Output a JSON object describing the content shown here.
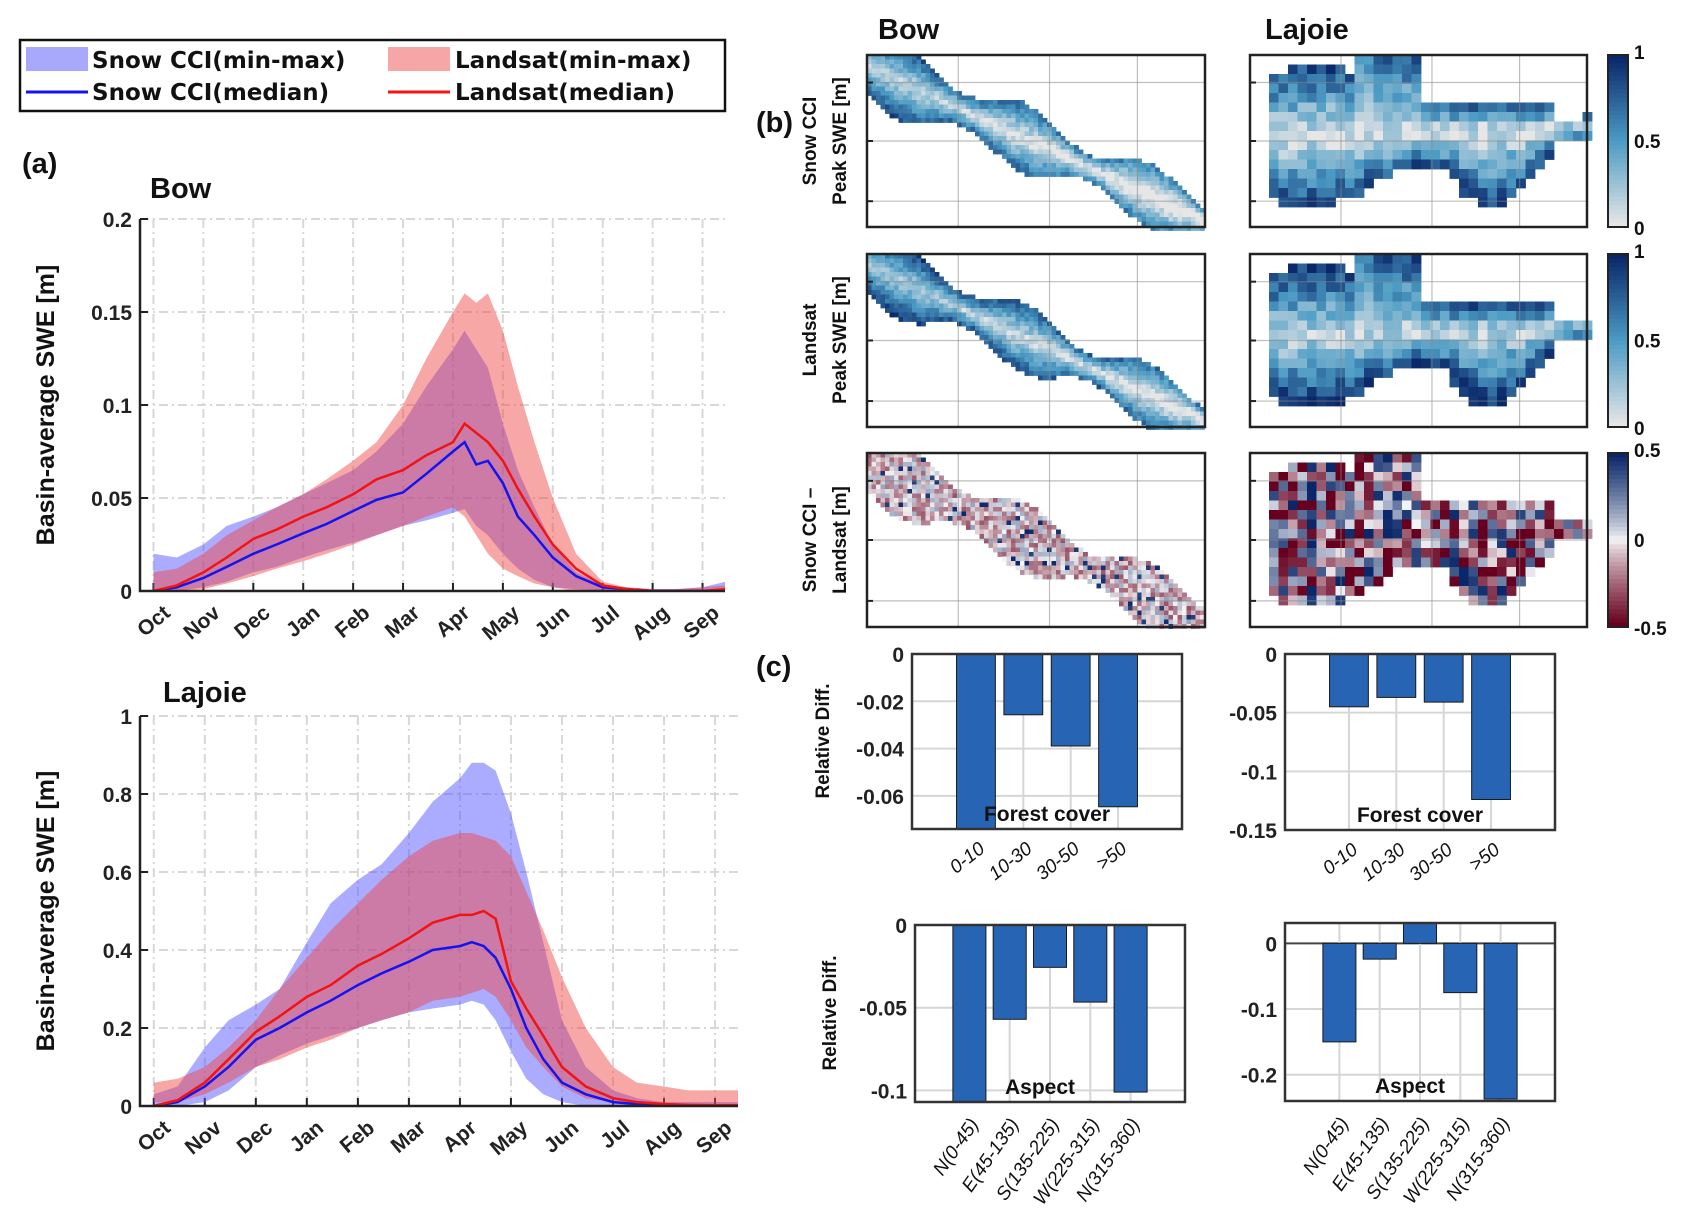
{
  "legend": {
    "items": [
      {
        "label": "Snow CCI(min-max)",
        "kind": "band",
        "color": "#a9a9fb"
      },
      {
        "label": "Landsat(min-max)",
        "kind": "band",
        "color": "#f6a6a6"
      },
      {
        "label": "Snow CCI(median)",
        "kind": "line",
        "color": "#1414f0"
      },
      {
        "label": "Landsat(median)",
        "kind": "line",
        "color": "#f01414"
      }
    ]
  },
  "panel_labels": {
    "a": "(a)",
    "b": "(b)",
    "c": "(c)"
  },
  "chart_data": [
    {
      "id": "bow-timeseries",
      "type": "area",
      "title": "Bow",
      "ylabel": "Basin-average SWE [m]",
      "ylim": [
        0,
        0.2
      ],
      "yticks": [
        "0",
        "0.05",
        "0.1",
        "0.15",
        "0.2"
      ],
      "ytick_values": [
        0,
        0.05,
        0.1,
        0.15,
        0.2
      ],
      "xticks": [
        "Oct",
        "Nov",
        "Dec",
        "Jan",
        "Feb",
        "Mar",
        "Apr",
        "May",
        "Jun",
        "Jul",
        "Aug",
        "Sep"
      ],
      "grid": true,
      "x": [
        "10-01",
        "10-15",
        "11-01",
        "11-15",
        "12-01",
        "12-15",
        "01-01",
        "01-15",
        "02-01",
        "02-15",
        "03-01",
        "03-15",
        "04-01",
        "04-08",
        "04-15",
        "04-22",
        "05-01",
        "05-10",
        "05-20",
        "06-01",
        "06-15",
        "07-01",
        "07-15",
        "08-01",
        "08-15",
        "09-01",
        "09-15",
        "09-30"
      ],
      "series": [
        {
          "name": "Snow CCI(min-max)",
          "kind": "band",
          "color": "#5050ff",
          "min": [
            0,
            0,
            0.002,
            0.005,
            0.01,
            0.013,
            0.018,
            0.022,
            0.026,
            0.03,
            0.035,
            0.038,
            0.042,
            0.044,
            0.035,
            0.03,
            0.02,
            0.012,
            0.006,
            0.002,
            0.001,
            0,
            0,
            0,
            0,
            0,
            0,
            0
          ],
          "max": [
            0.02,
            0.018,
            0.025,
            0.035,
            0.04,
            0.045,
            0.052,
            0.058,
            0.065,
            0.075,
            0.09,
            0.11,
            0.13,
            0.14,
            0.13,
            0.12,
            0.09,
            0.065,
            0.045,
            0.025,
            0.01,
            0.003,
            0.002,
            0.001,
            0.001,
            0.002,
            0.005,
            0.006
          ]
        },
        {
          "name": "Landsat(min-max)",
          "kind": "band",
          "color": "#f04848",
          "min": [
            0,
            0,
            0.001,
            0.004,
            0.008,
            0.012,
            0.016,
            0.02,
            0.025,
            0.03,
            0.035,
            0.04,
            0.045,
            0.04,
            0.03,
            0.02,
            0.012,
            0.008,
            0.004,
            0.002,
            0,
            0,
            0,
            0,
            0,
            0,
            0,
            0
          ],
          "max": [
            0.01,
            0.012,
            0.02,
            0.03,
            0.038,
            0.045,
            0.052,
            0.06,
            0.07,
            0.08,
            0.1,
            0.125,
            0.15,
            0.16,
            0.155,
            0.16,
            0.14,
            0.11,
            0.08,
            0.05,
            0.02,
            0.005,
            0.002,
            0.001,
            0.001,
            0.002,
            0.003,
            0.003
          ]
        },
        {
          "name": "Snow CCI(median)",
          "kind": "line",
          "color": "#1414f0",
          "values": [
            0,
            0.002,
            0.007,
            0.013,
            0.02,
            0.025,
            0.031,
            0.036,
            0.043,
            0.049,
            0.053,
            0.063,
            0.075,
            0.08,
            0.068,
            0.07,
            0.058,
            0.04,
            0.03,
            0.018,
            0.008,
            0.002,
            0.001,
            0,
            0,
            0,
            0,
            0
          ]
        },
        {
          "name": "Landsat(median)",
          "kind": "line",
          "color": "#f01414",
          "values": [
            0,
            0.003,
            0.01,
            0.018,
            0.028,
            0.033,
            0.04,
            0.045,
            0.052,
            0.06,
            0.065,
            0.073,
            0.08,
            0.09,
            0.085,
            0.08,
            0.07,
            0.055,
            0.04,
            0.025,
            0.012,
            0.003,
            0.001,
            0,
            0,
            0,
            0.001,
            0.001
          ]
        }
      ]
    },
    {
      "id": "lajoie-timeseries",
      "type": "area",
      "title": "Lajoie",
      "ylabel": "Basin-average SWE [m]",
      "ylim": [
        0,
        1
      ],
      "yticks": [
        "0",
        "0.2",
        "0.4",
        "0.6",
        "0.8",
        "1"
      ],
      "ytick_values": [
        0,
        0.2,
        0.4,
        0.6,
        0.8,
        1
      ],
      "xticks": [
        "Oct",
        "Nov",
        "Dec",
        "Jan",
        "Feb",
        "Mar",
        "Apr",
        "May",
        "Jun",
        "Jul",
        "Aug",
        "Sep"
      ],
      "grid": true,
      "x": [
        "10-01",
        "10-15",
        "11-01",
        "11-15",
        "12-01",
        "12-15",
        "01-01",
        "01-15",
        "02-01",
        "02-15",
        "03-01",
        "03-15",
        "04-01",
        "04-08",
        "04-15",
        "04-22",
        "05-01",
        "05-10",
        "05-20",
        "06-01",
        "06-15",
        "07-01",
        "07-15",
        "08-01",
        "08-15",
        "09-01",
        "09-15",
        "09-30"
      ],
      "series": [
        {
          "name": "Snow CCI(min-max)",
          "kind": "band",
          "color": "#5050ff",
          "min": [
            0,
            0,
            0.01,
            0.04,
            0.1,
            0.13,
            0.16,
            0.18,
            0.2,
            0.22,
            0.24,
            0.25,
            0.26,
            0.27,
            0.26,
            0.22,
            0.14,
            0.07,
            0.03,
            0.01,
            0,
            0,
            0,
            0,
            0,
            0,
            0,
            0
          ],
          "max": [
            0.03,
            0.05,
            0.15,
            0.22,
            0.26,
            0.3,
            0.42,
            0.52,
            0.58,
            0.62,
            0.7,
            0.78,
            0.84,
            0.88,
            0.88,
            0.86,
            0.75,
            0.6,
            0.42,
            0.22,
            0.1,
            0.04,
            0.02,
            0.01,
            0.01,
            0.01,
            0.01,
            0.01
          ]
        },
        {
          "name": "Landsat(min-max)",
          "kind": "band",
          "color": "#f04848",
          "min": [
            0.01,
            0.01,
            0.03,
            0.06,
            0.1,
            0.12,
            0.15,
            0.17,
            0.2,
            0.22,
            0.24,
            0.27,
            0.28,
            0.29,
            0.3,
            0.28,
            0.22,
            0.15,
            0.1,
            0.05,
            0.02,
            0.01,
            0.005,
            0.005,
            0.005,
            0.005,
            0.005,
            0.005
          ],
          "max": [
            0.06,
            0.07,
            0.1,
            0.15,
            0.22,
            0.3,
            0.38,
            0.45,
            0.52,
            0.58,
            0.64,
            0.68,
            0.7,
            0.7,
            0.69,
            0.68,
            0.64,
            0.55,
            0.45,
            0.33,
            0.2,
            0.1,
            0.06,
            0.05,
            0.04,
            0.04,
            0.04,
            0.04
          ]
        },
        {
          "name": "Snow CCI(median)",
          "kind": "line",
          "color": "#1414f0",
          "values": [
            0,
            0.01,
            0.05,
            0.1,
            0.17,
            0.2,
            0.24,
            0.27,
            0.31,
            0.34,
            0.37,
            0.4,
            0.41,
            0.42,
            0.41,
            0.38,
            0.3,
            0.2,
            0.12,
            0.06,
            0.03,
            0.01,
            0.005,
            0,
            0,
            0,
            0,
            0
          ]
        },
        {
          "name": "Landsat(median)",
          "kind": "line",
          "color": "#f01414",
          "values": [
            0,
            0.015,
            0.06,
            0.12,
            0.19,
            0.23,
            0.28,
            0.31,
            0.36,
            0.39,
            0.43,
            0.47,
            0.49,
            0.49,
            0.5,
            0.48,
            0.32,
            0.25,
            0.18,
            0.1,
            0.05,
            0.02,
            0.01,
            0.005,
            0.003,
            0.002,
            0.002,
            0.002
          ]
        }
      ]
    },
    {
      "id": "maps",
      "type": "heatmap",
      "columns": [
        "Bow",
        "Lajoie"
      ],
      "rows": [
        {
          "label_lines": [
            "Snow CCI",
            "Peak SWE [m]"
          ],
          "colorbar": {
            "range": [
              0,
              1
            ],
            "ticks": [
              "0",
              "0.5",
              "1"
            ],
            "colormap": "sequential-blue"
          }
        },
        {
          "label_lines": [
            "Landsat",
            "Peak SWE [m]"
          ],
          "colorbar": {
            "range": [
              0,
              1
            ],
            "ticks": [
              "0",
              "0.5",
              "1"
            ],
            "colormap": "sequential-blue"
          }
        },
        {
          "label_lines": [
            "Snow CCI –",
            "Landsat [m]"
          ],
          "colorbar": {
            "range": [
              -0.5,
              0.5
            ],
            "ticks": [
              "-0.5",
              "0",
              "0.5"
            ],
            "colormap": "diverging-red-blue"
          }
        }
      ],
      "colors": {
        "seq_low": "#e6e6e6",
        "seq_mid": "#4b9bc4",
        "seq_high": "#0a2769",
        "div_low": "#67001f",
        "div_mid": "#f7f7f7",
        "div_high": "#0a2769"
      }
    },
    {
      "id": "bow-forest",
      "type": "bar",
      "ylabel": "Relative Diff.",
      "annotation": "Forest cover",
      "categories": [
        "0-10",
        "10-30",
        "30-50",
        ">50"
      ],
      "values": [
        -0.076,
        -0.0257,
        -0.0389,
        -0.0646
      ],
      "ylim": [
        -0.074,
        0
      ],
      "yticks": [
        "0",
        "-0.02",
        "-0.04",
        "-0.06"
      ],
      "ytick_values": [
        0,
        -0.02,
        -0.04,
        -0.06
      ],
      "color": "#2864b4",
      "grid": true
    },
    {
      "id": "lajoie-forest",
      "type": "bar",
      "ylabel": "",
      "annotation": "Forest cover",
      "categories": [
        "0-10",
        "10-30",
        "30-50",
        ">50"
      ],
      "values": [
        -0.045,
        -0.037,
        -0.041,
        -0.124
      ],
      "ylim": [
        -0.15,
        0
      ],
      "yticks": [
        "0",
        "-0.05",
        "-0.1",
        "-0.15"
      ],
      "ytick_values": [
        0,
        -0.05,
        -0.1,
        -0.15
      ],
      "color": "#2864b4",
      "grid": true
    },
    {
      "id": "bow-aspect",
      "type": "bar",
      "ylabel": "Relative Diff.",
      "annotation": "Aspect",
      "categories": [
        "N(0-45)",
        "E(45-135)",
        "S(135-225)",
        "W(225-315)",
        "N(315-360)"
      ],
      "values": [
        -0.11,
        -0.057,
        -0.0256,
        -0.0466,
        -0.101
      ],
      "ylim": [
        -0.107,
        0
      ],
      "yticks": [
        "0",
        "-0.05",
        "-0.1"
      ],
      "ytick_values": [
        0,
        -0.05,
        -0.1
      ],
      "color": "#2864b4",
      "grid": true
    },
    {
      "id": "lajoie-aspect",
      "type": "bar",
      "ylabel": "",
      "annotation": "Aspect",
      "categories": [
        "N(0-45)",
        "E(45-135)",
        "S(135-225)",
        "W(225-315)",
        "N(315-360)"
      ],
      "values": [
        -0.15,
        -0.024,
        0.035,
        -0.075,
        -0.237
      ],
      "ylim": [
        -0.24,
        0.031
      ],
      "yticks": [
        "0",
        "-0.1",
        "-0.2"
      ],
      "ytick_values": [
        0,
        -0.1,
        -0.2
      ],
      "color": "#2864b4",
      "grid": true
    }
  ]
}
